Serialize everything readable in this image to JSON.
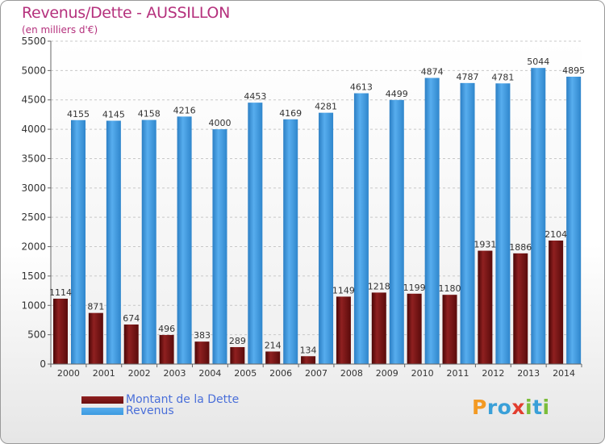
{
  "title": "Revenus/Dette - AUSSILLON",
  "subtitle": "(en milliers d'€)",
  "logo": {
    "letters": [
      "P",
      "r",
      "o",
      "x",
      "i",
      "t",
      "i"
    ],
    "colors": [
      "#f39a23",
      "#3aa0d8",
      "#3aa0d8",
      "#e23d2e",
      "#7bbd3a",
      "#3aa0d8",
      "#7bbd3a"
    ]
  },
  "chart_data": {
    "type": "bar",
    "title": "Revenus/Dette - AUSSILLON",
    "subtitle": "(en milliers d'€)",
    "categories": [
      "2000",
      "2001",
      "2002",
      "2003",
      "2004",
      "2005",
      "2006",
      "2007",
      "2008",
      "2009",
      "2010",
      "2011",
      "2012",
      "2013",
      "2014"
    ],
    "ylim": [
      0,
      5500
    ],
    "yticks": [
      0,
      500,
      1000,
      1500,
      2000,
      2500,
      3000,
      3500,
      4000,
      4500,
      5000,
      5500
    ],
    "grid": true,
    "legend_position": "bottom-left",
    "series": [
      {
        "name": "Montant de la Dette",
        "color": "#6b0f0f",
        "values": [
          1114,
          871,
          674,
          496,
          383,
          289,
          214,
          134,
          1149,
          1218,
          1199,
          1180,
          1931,
          1886,
          2104
        ],
        "labels": [
          "1114",
          "871",
          "674",
          "496",
          "383",
          "289",
          "214",
          "134",
          "1149",
          "1218",
          "1199",
          "1180",
          "1931",
          "1886",
          "2104"
        ]
      },
      {
        "name": "Revenus",
        "color": "#3c9be0",
        "values": [
          4155,
          4145,
          4158,
          4216,
          4000,
          4453,
          4169,
          4281,
          4613,
          4499,
          4874,
          4787,
          4781,
          5044,
          4895
        ],
        "labels": [
          "4155",
          "4145",
          "4158",
          "4216",
          "4000",
          "4453",
          "4169",
          "4281",
          "4613",
          "4499",
          "4874",
          "4787",
          "4781",
          "5044",
          "4895"
        ]
      }
    ]
  }
}
